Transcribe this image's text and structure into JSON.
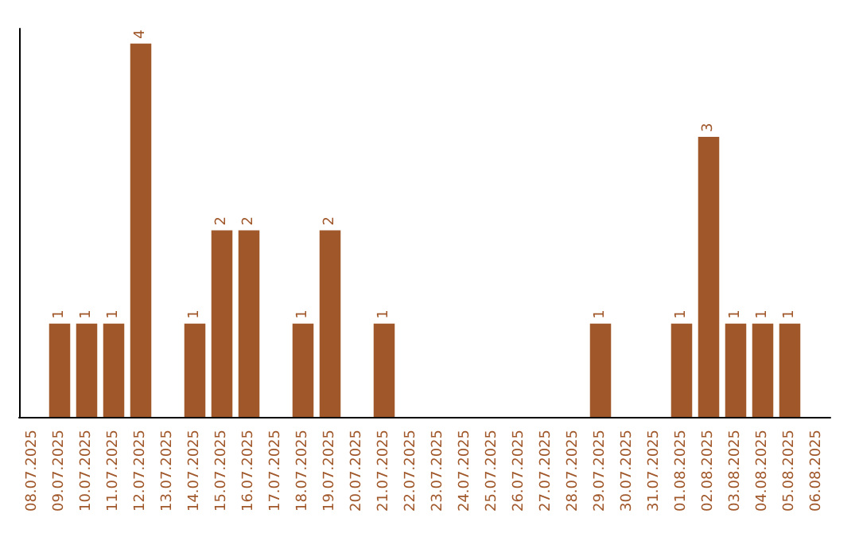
{
  "chart_data": {
    "type": "bar",
    "categories": [
      "08.07.2025",
      "09.07.2025",
      "10.07.2025",
      "11.07.2025",
      "12.07.2025",
      "13.07.2025",
      "14.07.2025",
      "15.07.2025",
      "16.07.2025",
      "17.07.2025",
      "18.07.2025",
      "19.07.2025",
      "20.07.2025",
      "21.07.2025",
      "22.07.2025",
      "23.07.2025",
      "24.07.2025",
      "25.07.2025",
      "26.07.2025",
      "27.07.2025",
      "28.07.2025",
      "29.07.2025",
      "30.07.2025",
      "31.07.2025",
      "01.08.2025",
      "02.08.2025",
      "03.08.2025",
      "04.08.2025",
      "05.08.2025",
      "06.08.2025"
    ],
    "values": [
      0,
      1,
      1,
      1,
      4,
      0,
      1,
      2,
      2,
      0,
      1,
      2,
      0,
      1,
      0,
      0,
      0,
      0,
      0,
      0,
      0,
      1,
      0,
      0,
      1,
      3,
      1,
      1,
      1,
      0
    ],
    "value_labels": [
      null,
      "1",
      "1",
      "1",
      "4",
      null,
      "1",
      "2",
      "2",
      null,
      "1",
      "2",
      null,
      "1",
      null,
      null,
      null,
      null,
      null,
      null,
      null,
      "1",
      null,
      null,
      "1",
      "3",
      "1",
      "1",
      "1",
      null
    ],
    "color": "#a0572a"
  }
}
